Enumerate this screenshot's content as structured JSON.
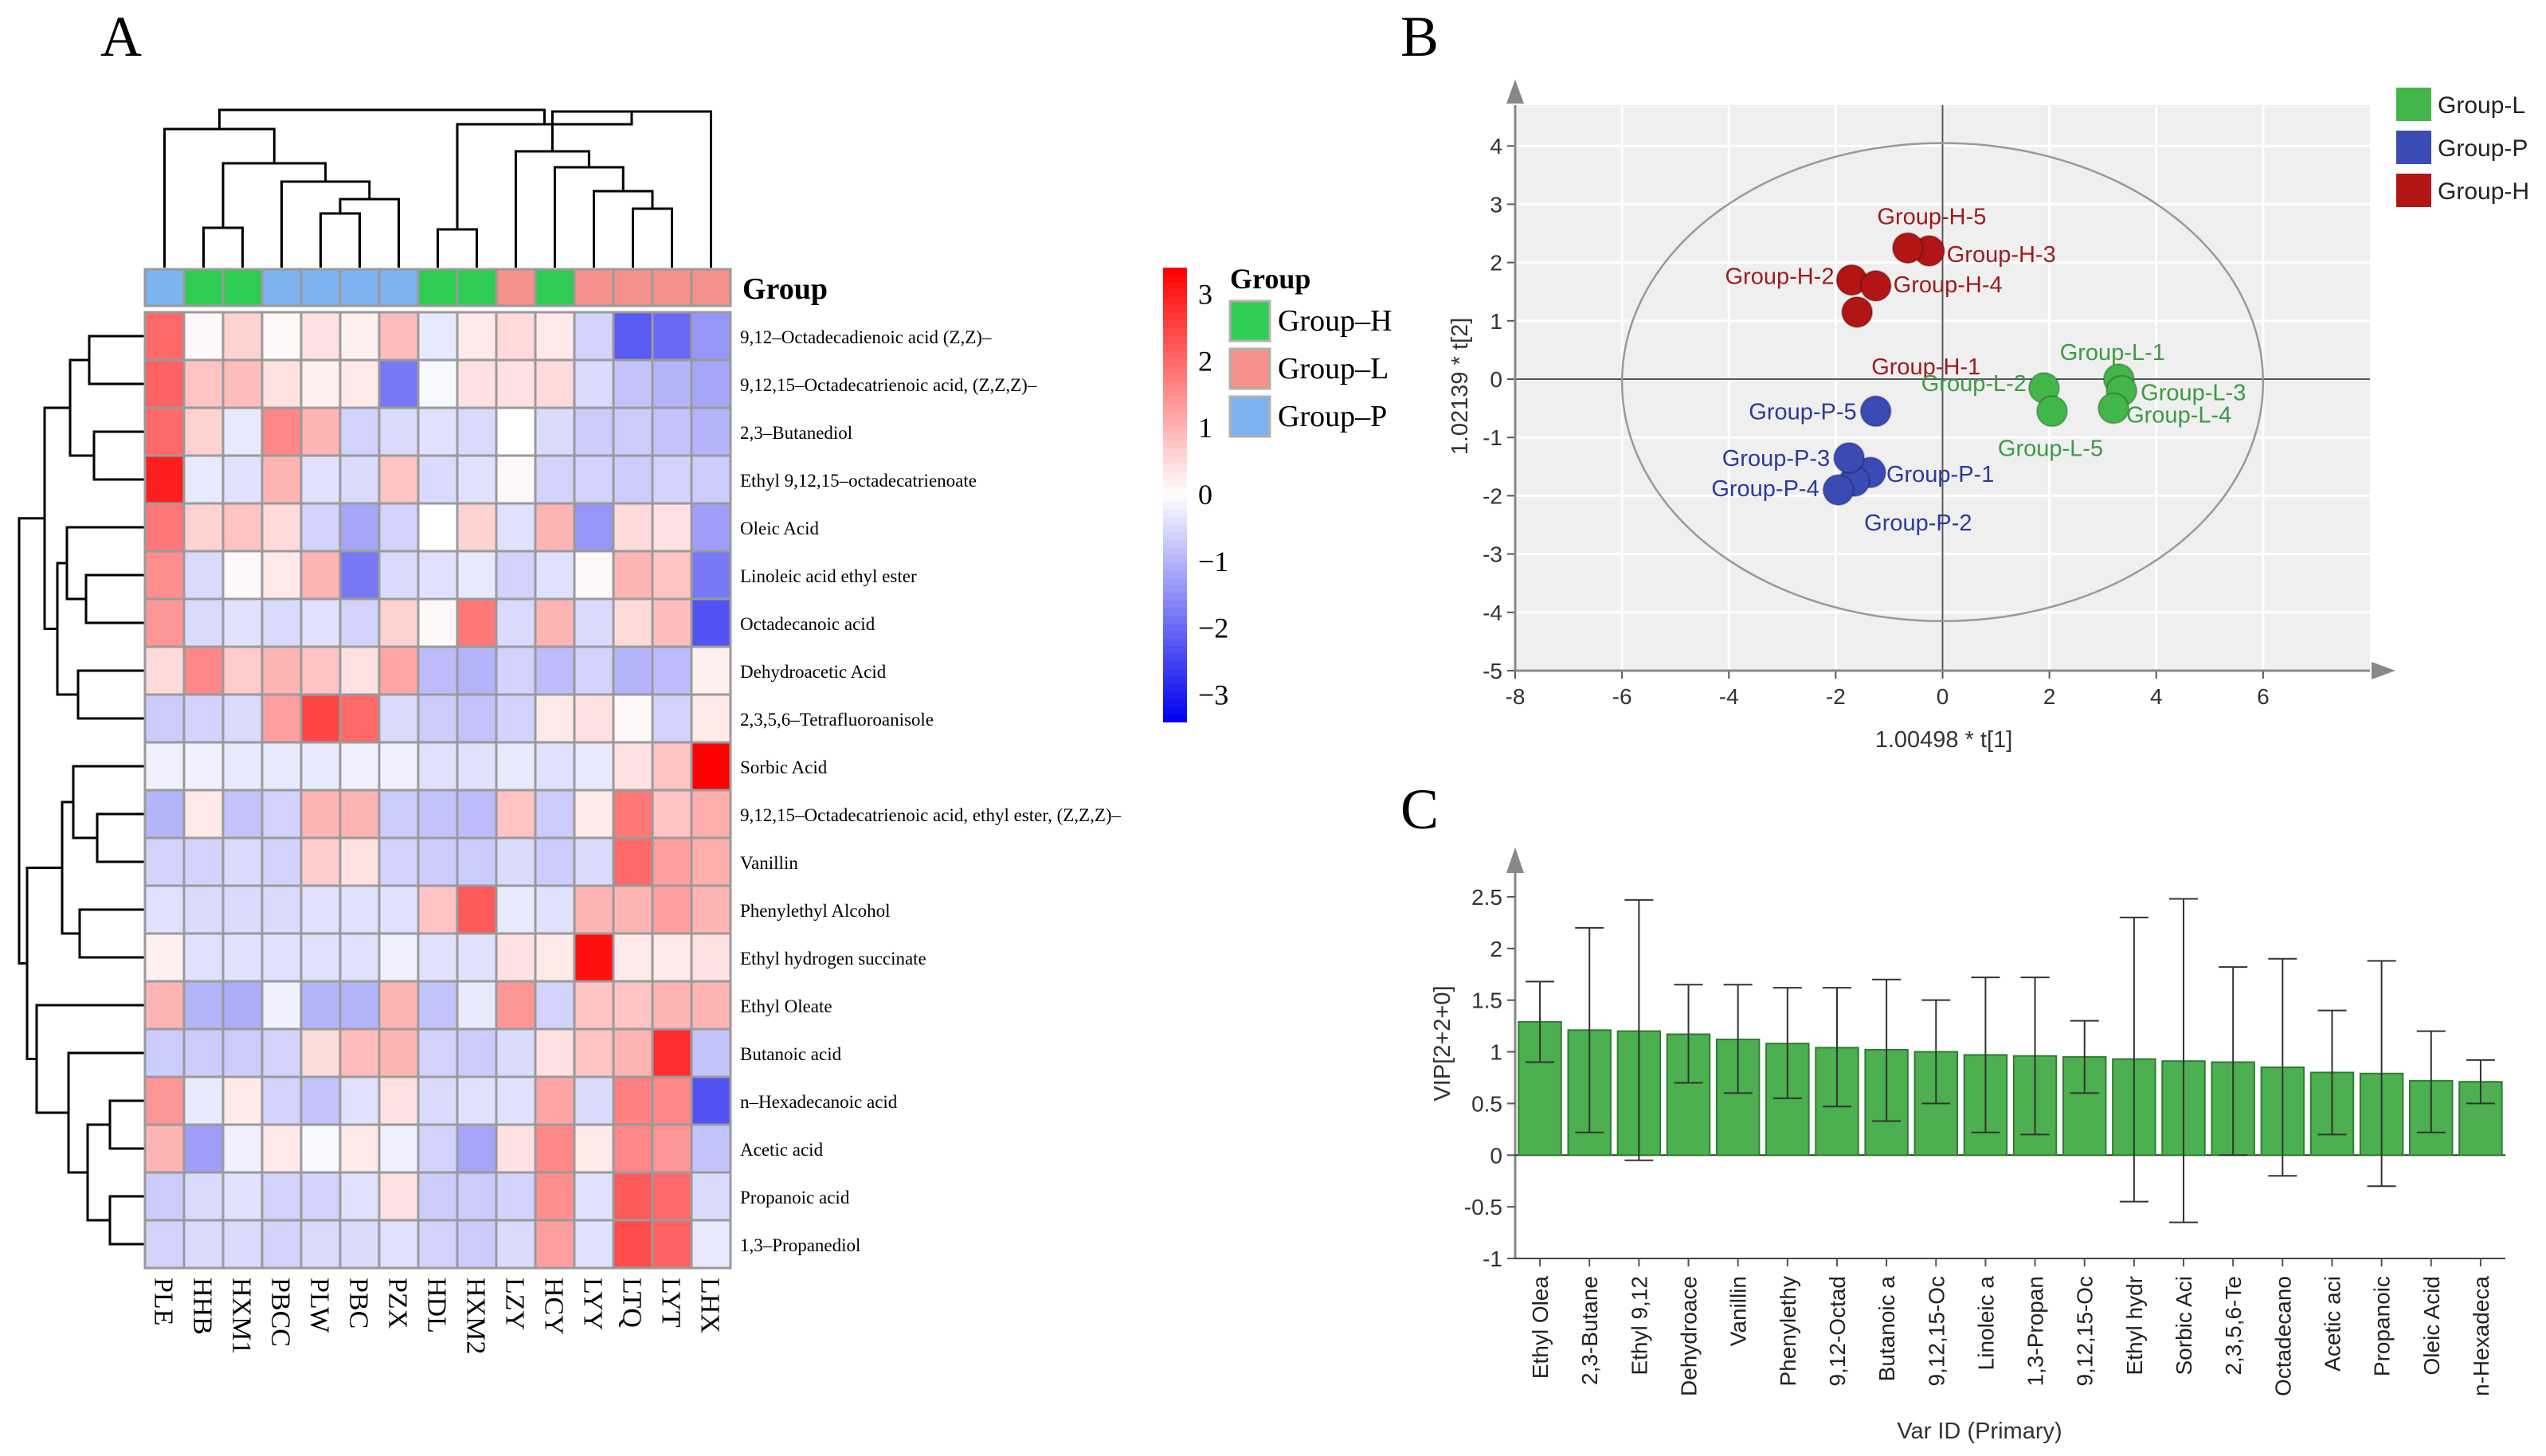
{
  "panel_letters": [
    "A",
    "B",
    "C"
  ],
  "chart_data": [
    {
      "type": "heatmap",
      "panel": "A",
      "group_header": "Group",
      "legend_title": "Group",
      "legend_groups": [
        {
          "name": "Group–H",
          "color": "#2ecc52"
        },
        {
          "name": "Group–L",
          "color": "#f4918a"
        },
        {
          "name": "Group–P",
          "color": "#7fb2f0"
        }
      ],
      "scale_ticks": [
        3,
        2,
        1,
        0,
        -1,
        -2,
        -3
      ],
      "scale_range": [
        -3.4,
        3.4
      ],
      "scale_colors": {
        "low": "#0000ee",
        "mid": "#ffffff",
        "high": "#ff0000"
      },
      "columns": [
        "PLE",
        "HHB",
        "HXM1",
        "PBCC",
        "PLW",
        "PBC",
        "PZX",
        "HDL",
        "HXM2",
        "LZY",
        "HCY",
        "LYY",
        "LTQ",
        "LYT",
        "LHX"
      ],
      "column_groups": [
        "P",
        "H",
        "H",
        "P",
        "P",
        "P",
        "P",
        "H",
        "H",
        "L",
        "H",
        "L",
        "L",
        "L",
        "L"
      ],
      "rows": [
        "9,12–Octadecadienoic acid (Z,Z)–",
        "9,12,15–Octadecatrienoic acid, (Z,Z,Z)–",
        "2,3–Butanediol",
        "Ethyl 9,12,15–octadecatrienoate",
        "Oleic Acid",
        "Linoleic acid ethyl ester",
        "Octadecanoic acid",
        "Dehydroacetic Acid",
        "2,3,5,6–Tetrafluoroanisole",
        "Sorbic Acid",
        "9,12,15–Octadecatrienoic acid, ethyl ester, (Z,Z,Z)–",
        "Vanillin",
        "Phenylethyl Alcohol",
        "Ethyl hydrogen succinate",
        "Ethyl Oleate",
        "Butanoic acid",
        "n–Hexadecanoic acid",
        "Acetic acid",
        "Propanoic acid",
        "1,3–Propanediol"
      ],
      "values": [
        [
          2.0,
          0.1,
          0.6,
          0.1,
          0.4,
          0.2,
          0.9,
          -0.3,
          0.3,
          0.5,
          0.3,
          -0.6,
          -2.2,
          -2.0,
          -1.4
        ],
        [
          2.1,
          0.8,
          0.9,
          0.4,
          0.2,
          0.3,
          -1.8,
          -0.1,
          0.4,
          0.4,
          0.5,
          -0.5,
          -0.8,
          -1.0,
          -1.2
        ],
        [
          2.0,
          0.6,
          -0.3,
          1.6,
          1.0,
          -0.6,
          -0.5,
          -0.4,
          -0.5,
          0.0,
          -0.5,
          -0.7,
          -0.7,
          -0.8,
          -1.0
        ],
        [
          3.0,
          -0.3,
          -0.4,
          1.0,
          -0.4,
          -0.5,
          0.8,
          -0.5,
          -0.4,
          0.1,
          -0.6,
          -0.6,
          -0.7,
          -0.6,
          -0.7
        ],
        [
          1.8,
          0.6,
          0.8,
          0.5,
          -0.6,
          -1.2,
          -0.6,
          0.0,
          0.6,
          -0.4,
          1.0,
          -1.4,
          0.5,
          0.4,
          -1.3
        ],
        [
          1.5,
          -0.5,
          0.1,
          0.3,
          1.0,
          -1.8,
          -0.5,
          -0.4,
          -0.3,
          -0.6,
          -0.4,
          0.1,
          1.0,
          0.8,
          -1.8
        ],
        [
          1.4,
          -0.5,
          -0.4,
          -0.5,
          -0.4,
          -0.6,
          0.6,
          0.1,
          1.8,
          -0.5,
          1.0,
          -0.5,
          0.5,
          0.9,
          -2.3
        ],
        [
          0.5,
          1.6,
          0.7,
          1.0,
          0.8,
          0.4,
          1.2,
          -0.9,
          -1.0,
          -0.6,
          -0.9,
          -0.6,
          -1.0,
          -0.9,
          0.2
        ],
        [
          -0.7,
          -0.6,
          -0.5,
          1.3,
          2.5,
          2.0,
          -0.5,
          -0.7,
          -0.8,
          -0.6,
          0.3,
          0.4,
          0.1,
          -0.6,
          0.3
        ],
        [
          -0.2,
          -0.2,
          -0.3,
          -0.3,
          -0.3,
          -0.2,
          -0.2,
          -0.4,
          -0.4,
          -0.3,
          -0.4,
          -0.3,
          0.4,
          0.8,
          3.4
        ],
        [
          -1.0,
          0.3,
          -0.8,
          -0.6,
          1.0,
          1.0,
          -0.7,
          -0.8,
          -0.9,
          0.8,
          -0.7,
          0.3,
          1.8,
          0.8,
          1.1
        ],
        [
          -0.6,
          -0.6,
          -0.5,
          -0.6,
          0.7,
          0.4,
          -0.6,
          -0.7,
          -0.7,
          -0.5,
          -0.7,
          -0.5,
          2.0,
          1.3,
          1.1
        ],
        [
          -0.4,
          -0.5,
          -0.5,
          -0.5,
          -0.4,
          -0.4,
          -0.4,
          0.8,
          2.2,
          -0.3,
          -0.4,
          1.0,
          1.0,
          1.3,
          1.0
        ],
        [
          0.2,
          -0.4,
          -0.4,
          -0.4,
          -0.4,
          -0.4,
          -0.2,
          -0.4,
          -0.4,
          0.4,
          0.3,
          3.2,
          0.3,
          0.3,
          0.4
        ],
        [
          1.0,
          -1.0,
          -1.1,
          -0.2,
          -1.0,
          -1.0,
          1.0,
          -0.8,
          -0.3,
          1.4,
          -0.6,
          0.8,
          0.8,
          1.0,
          1.0
        ],
        [
          -0.7,
          -0.7,
          -0.7,
          -0.6,
          0.5,
          0.9,
          1.0,
          -0.6,
          -0.7,
          -0.5,
          0.4,
          0.8,
          1.0,
          2.8,
          -0.8
        ],
        [
          1.4,
          -0.3,
          0.3,
          -0.6,
          -0.8,
          -0.4,
          0.4,
          -0.5,
          -0.4,
          -0.4,
          1.2,
          -0.5,
          1.7,
          1.6,
          -2.3
        ],
        [
          1.0,
          -1.3,
          -0.2,
          0.3,
          -0.1,
          0.3,
          -0.2,
          -0.6,
          -1.2,
          0.4,
          1.6,
          0.3,
          1.6,
          1.4,
          -0.8
        ],
        [
          -0.7,
          -0.5,
          -0.4,
          -0.6,
          -0.6,
          -0.4,
          0.4,
          -0.7,
          -0.7,
          -0.6,
          1.5,
          -0.4,
          2.2,
          2.0,
          -0.5
        ],
        [
          -0.6,
          -0.5,
          -0.5,
          -0.6,
          -0.5,
          -0.5,
          -0.4,
          -0.6,
          -0.7,
          -0.5,
          1.3,
          -0.4,
          2.4,
          2.1,
          -0.3
        ]
      ]
    },
    {
      "type": "scatter",
      "panel": "B",
      "xlabel": "1.00498 * t[1]",
      "ylabel": "1.02139 * t[2]",
      "xlim": [
        -8,
        8
      ],
      "ylim": [
        -5,
        4.7
      ],
      "xticks": [
        -8,
        -6,
        -4,
        -2,
        0,
        2,
        4,
        6
      ],
      "yticks": [
        4,
        3,
        2,
        1,
        0,
        -1,
        -2,
        -3,
        -4,
        -5
      ],
      "ellipse": {
        "center": [
          0,
          -0.05
        ],
        "rx": 6,
        "ry": 4.1
      },
      "legend": [
        {
          "name": "Group–L",
          "color": "#43b649"
        },
        {
          "name": "Group–P",
          "color": "#3a4bb5"
        },
        {
          "name": "Group–H",
          "color": "#b31414"
        }
      ],
      "series": [
        {
          "name": "Group–H",
          "color": "#b31414",
          "points": [
            {
              "label": "Group–H–1",
              "x": -1.6,
              "y": 1.15
            },
            {
              "label": "Group–H–2",
              "x": -1.7,
              "y": 1.7
            },
            {
              "label": "Group–H–3",
              "x": -0.25,
              "y": 2.2
            },
            {
              "label": "Group–H–4",
              "x": -1.25,
              "y": 1.6
            },
            {
              "label": "Group–H–5",
              "x": -0.65,
              "y": 2.25
            }
          ]
        },
        {
          "name": "Group–L",
          "color": "#43b649",
          "points": [
            {
              "label": "Group–L–1",
              "x": 3.3,
              "y": 0.0
            },
            {
              "label": "Group–L–2",
              "x": 1.9,
              "y": -0.15
            },
            {
              "label": "Group–L–3",
              "x": 3.35,
              "y": -0.2
            },
            {
              "label": "Group–L–4",
              "x": 3.2,
              "y": -0.5
            },
            {
              "label": "Group–L–5",
              "x": 2.05,
              "y": -0.55
            }
          ]
        },
        {
          "name": "Group–P",
          "color": "#3a4bb5",
          "points": [
            {
              "label": "Group–P–1",
              "x": -1.35,
              "y": -1.6
            },
            {
              "label": "Group–P–2",
              "x": -1.65,
              "y": -1.75
            },
            {
              "label": "Group–P–3",
              "x": -1.75,
              "y": -1.35
            },
            {
              "label": "Group–P–4",
              "x": -1.95,
              "y": -1.9
            },
            {
              "label": "Group–P–5",
              "x": -1.25,
              "y": -0.55
            }
          ]
        }
      ]
    },
    {
      "type": "bar",
      "panel": "C",
      "xlabel": "Var ID (Primary)",
      "ylabel": "VIP[2+2+0]",
      "ylim": [
        -1,
        2.7
      ],
      "yticks": [
        2.5,
        2,
        1.5,
        1,
        0.5,
        0,
        -0.5,
        -1
      ],
      "bar_color": "#4caf50",
      "categories": [
        "Ethyl Olea",
        "2,3-Butane",
        "Ethyl 9,12",
        "Dehydroace",
        "Vanillin",
        "Phenylethy",
        "9,12-Octad",
        "Butanoic a",
        "9,12,15-Oc",
        "Linoleic a",
        "1,3-Propan",
        "9,12,15-Oc",
        "Ethyl hydr",
        "Sorbic Aci",
        "2,3,5,6-Te",
        "Octadecano",
        "Acetic aci",
        "Propanoic",
        "Oleic Acid",
        "n-Hexadeca"
      ],
      "values": [
        1.29,
        1.21,
        1.2,
        1.17,
        1.12,
        1.08,
        1.04,
        1.02,
        1.0,
        0.97,
        0.96,
        0.95,
        0.93,
        0.91,
        0.9,
        0.85,
        0.8,
        0.79,
        0.72,
        0.71
      ],
      "error_low": [
        0.9,
        0.22,
        -0.05,
        0.7,
        0.6,
        0.55,
        0.47,
        0.33,
        0.5,
        0.22,
        0.2,
        0.6,
        -0.45,
        -0.65,
        0.0,
        -0.2,
        0.2,
        -0.3,
        0.22,
        0.5
      ],
      "error_high": [
        1.68,
        2.2,
        2.47,
        1.65,
        1.65,
        1.62,
        1.62,
        1.7,
        1.5,
        1.72,
        1.72,
        1.3,
        2.3,
        2.48,
        1.82,
        1.9,
        1.4,
        1.88,
        1.2,
        0.92
      ]
    }
  ]
}
